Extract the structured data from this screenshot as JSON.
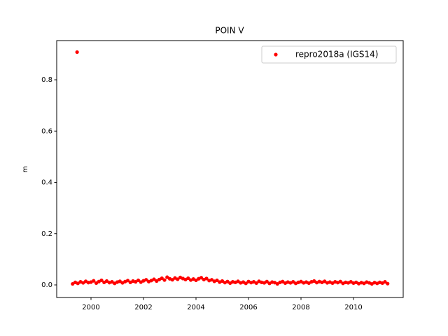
{
  "chart_data": {
    "type": "scatter",
    "title": "POIN V",
    "y_label": "m",
    "x": [
      1999.3,
      1999.4,
      1999.47,
      1999.5,
      1999.6,
      1999.7,
      1999.8,
      1999.9,
      2000.0,
      2000.1,
      2000.2,
      2000.3,
      2000.4,
      2000.5,
      2000.6,
      2000.7,
      2000.8,
      2000.9,
      2001.0,
      2001.1,
      2001.2,
      2001.3,
      2001.4,
      2001.5,
      2001.6,
      2001.7,
      2001.8,
      2001.9,
      2002.0,
      2002.1,
      2002.2,
      2002.3,
      2002.4,
      2002.5,
      2002.6,
      2002.7,
      2002.8,
      2002.9,
      2003.0,
      2003.1,
      2003.2,
      2003.3,
      2003.4,
      2003.5,
      2003.6,
      2003.7,
      2003.8,
      2003.9,
      2004.0,
      2004.1,
      2004.2,
      2004.3,
      2004.4,
      2004.5,
      2004.6,
      2004.7,
      2004.8,
      2004.9,
      2005.0,
      2005.1,
      2005.2,
      2005.3,
      2005.4,
      2005.5,
      2005.6,
      2005.7,
      2005.8,
      2005.9,
      2006.0,
      2006.1,
      2006.2,
      2006.3,
      2006.4,
      2006.5,
      2006.6,
      2006.7,
      2006.8,
      2006.9,
      2007.0,
      2007.1,
      2007.2,
      2007.3,
      2007.4,
      2007.5,
      2007.6,
      2007.7,
      2007.8,
      2007.9,
      2008.0,
      2008.1,
      2008.2,
      2008.3,
      2008.4,
      2008.5,
      2008.6,
      2008.7,
      2008.8,
      2008.9,
      2009.0,
      2009.1,
      2009.2,
      2009.3,
      2009.4,
      2009.5,
      2009.6,
      2009.7,
      2009.8,
      2009.9,
      2010.0,
      2010.1,
      2010.2,
      2010.3,
      2010.4,
      2010.5,
      2010.6,
      2010.7,
      2010.8,
      2010.9,
      2011.0,
      2011.1,
      2011.2,
      2011.3
    ],
    "series": [
      {
        "name": "repro2018a (IGS14)",
        "color": "#ff0000",
        "values": [
          0.004,
          0.01,
          0.908,
          0.006,
          0.012,
          0.008,
          0.014,
          0.009,
          0.011,
          0.016,
          0.007,
          0.013,
          0.018,
          0.01,
          0.015,
          0.009,
          0.012,
          0.006,
          0.011,
          0.014,
          0.008,
          0.013,
          0.017,
          0.01,
          0.015,
          0.012,
          0.018,
          0.011,
          0.016,
          0.02,
          0.013,
          0.017,
          0.022,
          0.015,
          0.021,
          0.026,
          0.019,
          0.03,
          0.024,
          0.02,
          0.027,
          0.022,
          0.029,
          0.025,
          0.021,
          0.026,
          0.019,
          0.023,
          0.018,
          0.024,
          0.028,
          0.021,
          0.025,
          0.017,
          0.02,
          0.014,
          0.018,
          0.011,
          0.015,
          0.009,
          0.013,
          0.007,
          0.012,
          0.01,
          0.014,
          0.008,
          0.011,
          0.006,
          0.013,
          0.009,
          0.012,
          0.007,
          0.014,
          0.01,
          0.008,
          0.013,
          0.006,
          0.011,
          0.009,
          0.004,
          0.01,
          0.013,
          0.007,
          0.011,
          0.008,
          0.012,
          0.006,
          0.01,
          0.013,
          0.008,
          0.011,
          0.007,
          0.012,
          0.015,
          0.009,
          0.013,
          0.01,
          0.014,
          0.008,
          0.011,
          0.007,
          0.012,
          0.009,
          0.013,
          0.006,
          0.01,
          0.008,
          0.012,
          0.007,
          0.01,
          0.005,
          0.009,
          0.006,
          0.011,
          0.008,
          0.004,
          0.009,
          0.006,
          0.01,
          0.007,
          0.012,
          0.005
        ]
      }
    ],
    "xlim": [
      1998.693,
      2011.893
    ],
    "ylim": [
      -0.0491,
      0.9529
    ],
    "xticks": [
      2000,
      2002,
      2004,
      2006,
      2008,
      2010
    ],
    "yticks": [
      {
        "value": 0.0,
        "label": "0.0"
      },
      0.2,
      0.4,
      0.6,
      0.8
    ],
    "legend": "upper right",
    "grid": false
  }
}
